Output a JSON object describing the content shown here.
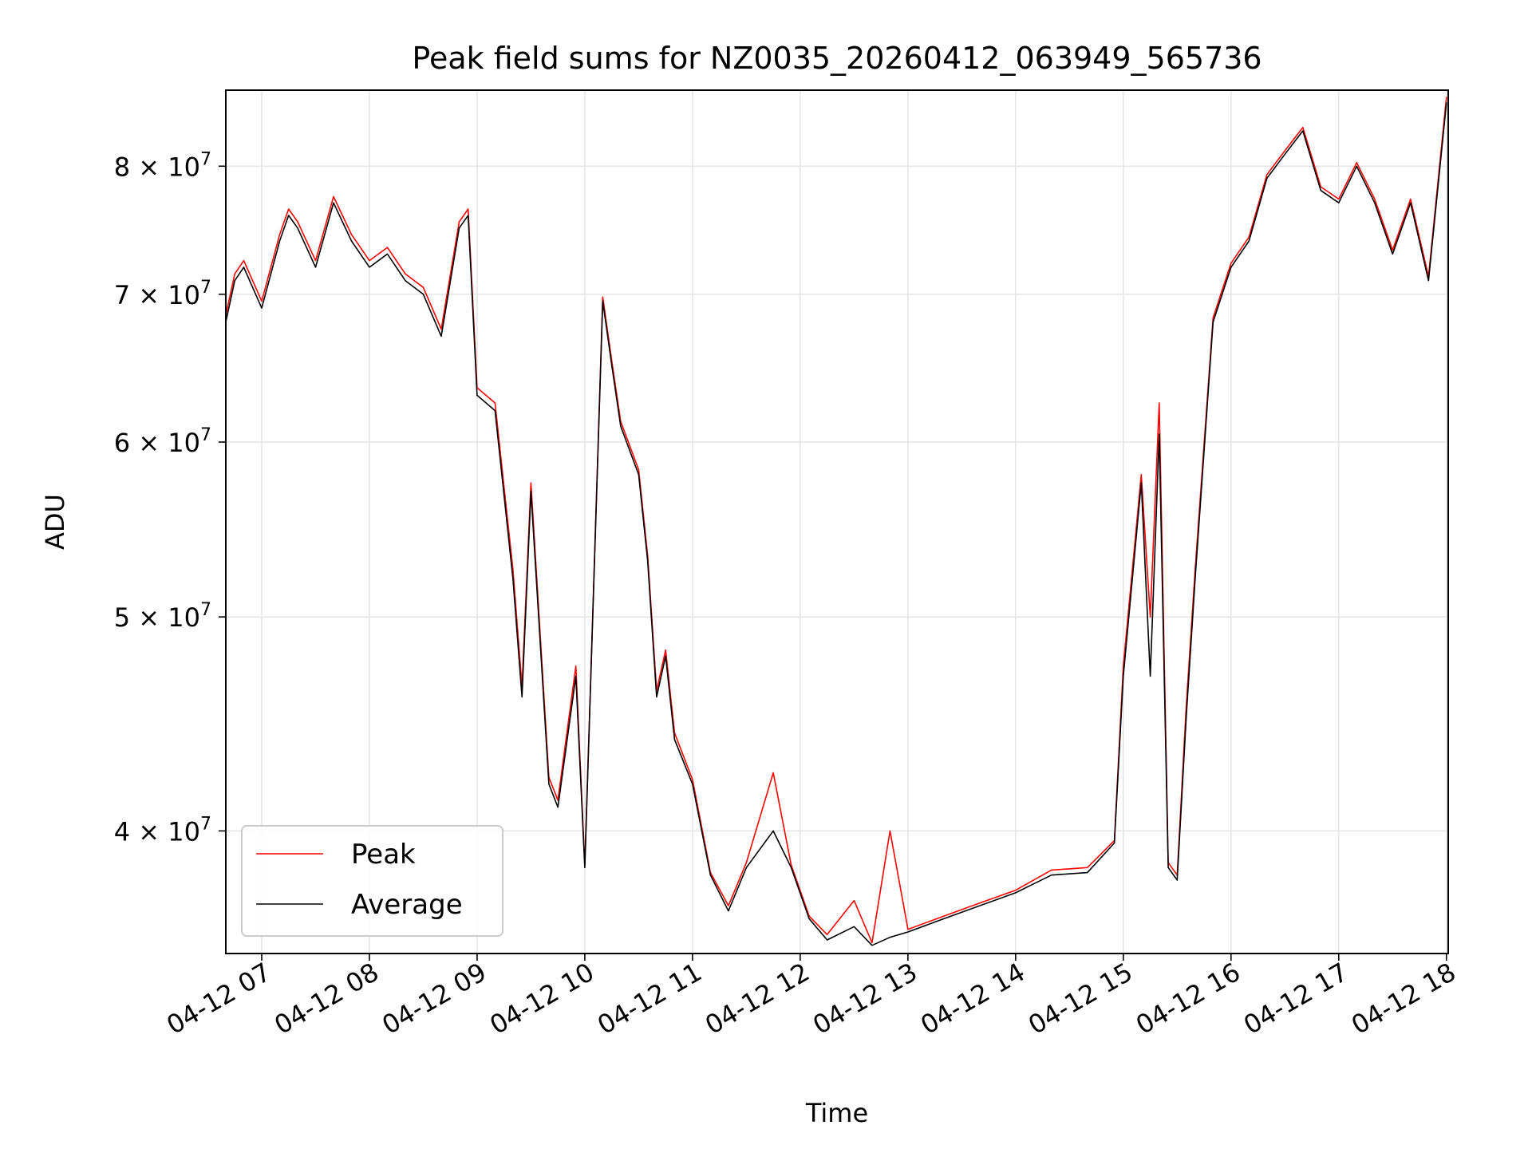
{
  "chart_data": {
    "type": "line",
    "title": "Peak field sums for NZ0035_20260412_063949_565736",
    "xlabel": "Time",
    "ylabel": "ADU",
    "yscale": "log",
    "grid": true,
    "legend_position": "lower-left",
    "x_range": [
      "2026-04-12 06:40",
      "2026-04-12 18:01"
    ],
    "x_ticks": [
      "04-12 07",
      "04-12 08",
      "04-12 09",
      "04-12 10",
      "04-12 11",
      "04-12 12",
      "04-12 13",
      "04-12 14",
      "04-12 15",
      "04-12 16",
      "04-12 17",
      "04-12 18"
    ],
    "y_range": [
      35200000,
      86600000
    ],
    "y_ticks": [
      {
        "value": 40000000,
        "mantissa": "4",
        "base": "10",
        "exp": "7"
      },
      {
        "value": 50000000,
        "mantissa": "5",
        "base": "10",
        "exp": "7"
      },
      {
        "value": 60000000,
        "mantissa": "6",
        "base": "10",
        "exp": "7"
      },
      {
        "value": 70000000,
        "mantissa": "7",
        "base": "10",
        "exp": "7"
      },
      {
        "value": 80000000,
        "mantissa": "8",
        "base": "10",
        "exp": "7"
      }
    ],
    "series": [
      {
        "name": "Peak",
        "color": "#ff0000"
      },
      {
        "name": "Average",
        "color": "#000000"
      }
    ],
    "x": [
      "06:40",
      "06:45",
      "06:50",
      "07:00",
      "07:10",
      "07:15",
      "07:20",
      "07:30",
      "07:40",
      "07:50",
      "08:00",
      "08:10",
      "08:20",
      "08:30",
      "08:40",
      "08:50",
      "08:55",
      "09:00",
      "09:10",
      "09:20",
      "09:25",
      "09:30",
      "09:40",
      "09:45",
      "09:55",
      "10:00",
      "10:10",
      "10:15",
      "10:20",
      "10:30",
      "10:35",
      "10:40",
      "10:45",
      "10:50",
      "11:00",
      "11:10",
      "11:20",
      "11:30",
      "11:45",
      "11:55",
      "12:05",
      "12:15",
      "12:30",
      "12:40",
      "12:50",
      "13:00",
      "13:20",
      "13:40",
      "14:00",
      "14:20",
      "14:40",
      "14:55",
      "15:00",
      "15:10",
      "15:15",
      "15:20",
      "15:25",
      "15:30",
      "15:35",
      "15:40",
      "15:50",
      "16:00",
      "16:10",
      "16:20",
      "16:30",
      "16:40",
      "16:50",
      "17:00",
      "17:10",
      "17:20",
      "17:30",
      "17:40",
      "17:50",
      "18:00"
    ],
    "average": [
      68,
      71,
      72,
      69,
      74,
      76,
      75,
      72,
      77,
      74,
      72,
      73,
      71,
      70,
      67,
      75,
      76,
      63,
      62,
      52,
      46,
      57,
      42,
      41,
      47,
      38.5,
      69.5,
      65,
      61,
      58,
      53,
      46,
      48,
      44,
      42,
      38.2,
      36.8,
      38.5,
      40,
      38.5,
      36.5,
      35.7,
      36.2,
      35.5,
      35.8,
      36,
      36.5,
      37,
      37.5,
      38.2,
      38.3,
      39.5,
      47,
      57.5,
      47,
      60.5,
      38.5,
      38,
      45,
      52,
      68,
      72,
      74,
      79,
      81,
      83,
      78,
      77,
      80,
      77,
      73,
      77,
      71,
      85.5
    ],
    "peak": [
      68.5,
      71.5,
      72.5,
      69.5,
      74.5,
      76.5,
      75.5,
      72.5,
      77.5,
      74.5,
      72.5,
      73.5,
      71.5,
      70.5,
      67.5,
      75.5,
      76.5,
      63.5,
      62.5,
      52.5,
      46.5,
      57.5,
      42.3,
      41.3,
      47.5,
      38.6,
      69.8,
      65.3,
      61.3,
      58.3,
      53.3,
      46.3,
      48.3,
      44.3,
      42.2,
      38.3,
      37,
      38.7,
      42.5,
      38.6,
      36.6,
      35.9,
      37.2,
      35.6,
      40,
      36.1,
      36.6,
      37.1,
      37.6,
      38.4,
      38.5,
      39.6,
      47.5,
      58,
      50,
      62.5,
      38.7,
      38.2,
      45.5,
      52.5,
      68.3,
      72.3,
      74.3,
      79.3,
      81.3,
      83.3,
      78.3,
      77.3,
      80.3,
      77.3,
      73.3,
      77.3,
      71.3,
      86
    ]
  }
}
